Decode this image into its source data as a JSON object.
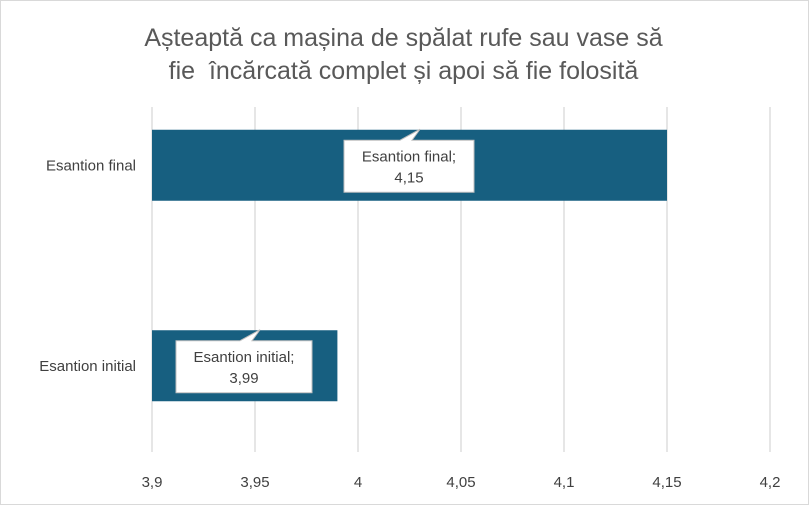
{
  "chart_data": {
    "type": "bar",
    "orientation": "horizontal",
    "title_lines": [
      "Așteaptă ca mașina de spălat rufe sau vase să",
      "fie  încărcată complet și apoi să fie folosită"
    ],
    "categories": [
      "Esantion final",
      "Esantion initial"
    ],
    "values": [
      4.15,
      3.99
    ],
    "value_labels": [
      "4,15",
      "3,99"
    ],
    "xlim": [
      3.9,
      4.2
    ],
    "x_ticks": [
      3.9,
      3.95,
      4.0,
      4.05,
      4.1,
      4.15,
      4.2
    ],
    "x_tick_labels": [
      "3,9",
      "3,95",
      "4",
      "4,05",
      "4,1",
      "4,15",
      "4,2"
    ],
    "grid": true,
    "legend": "none",
    "bar_color": "#175f80",
    "gridline_color": "#d9d9d9"
  }
}
